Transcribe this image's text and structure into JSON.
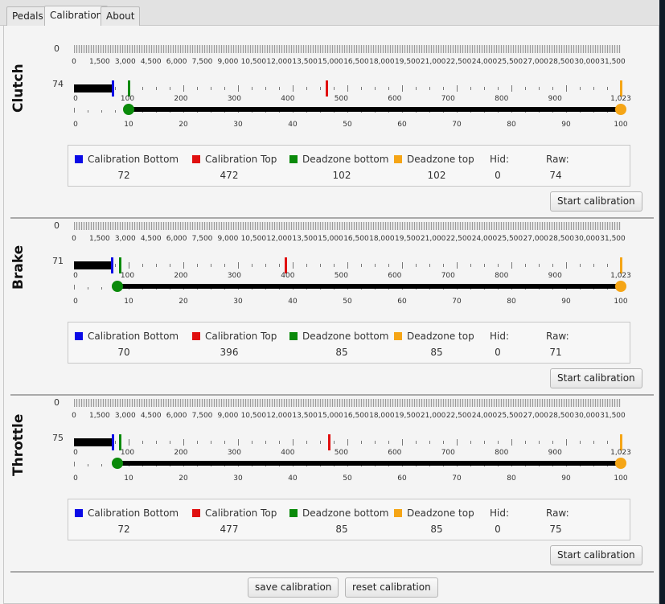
{
  "tabs": [
    {
      "label": "Pedals",
      "active": false
    },
    {
      "label": "Calibration",
      "active": true
    },
    {
      "label": "About",
      "active": false
    }
  ],
  "scales": {
    "top_ticks": [
      "0",
      "1,500",
      "3,000",
      "4,500",
      "6,000",
      "7,500",
      "9,000",
      "10,500",
      "12,000",
      "13,500",
      "15,000",
      "16,500",
      "18,000",
      "19,500",
      "21,000",
      "22,500",
      "24,000",
      "25,500",
      "27,000",
      "28,500",
      "30,000",
      "31,500"
    ],
    "mid_ticks": [
      "0",
      "100",
      "200",
      "300",
      "400",
      "500",
      "600",
      "700",
      "800",
      "900",
      "1,023"
    ],
    "bottom_ticks": [
      "0",
      "10",
      "20",
      "30",
      "40",
      "50",
      "60",
      "70",
      "80",
      "90",
      "100"
    ],
    "mid_max": 1023,
    "bottom_max": 100
  },
  "legend_labels": {
    "cal_bottom": "Calibration Bottom",
    "cal_top": "Calibration Top",
    "dz_bottom": "Deadzone bottom",
    "dz_top": "Deadzone top",
    "hid": "Hid:",
    "raw": "Raw:"
  },
  "colors": {
    "cal_bottom": "#0a0ae6",
    "cal_top": "#e01010",
    "dz_bottom": "#0a8a0a",
    "dz_top": "#f5a516"
  },
  "pedals": [
    {
      "name": "Clutch",
      "top_value": "0",
      "raw_label": "74",
      "cal_bottom": "72",
      "cal_top": "472",
      "dz_bottom": "102",
      "dz_top": "102",
      "hid": "0",
      "raw": "74",
      "deadzone_low_pct": 10,
      "deadzone_high_pct": 100,
      "button": "Start calibration"
    },
    {
      "name": "Brake",
      "top_value": "0",
      "raw_label": "71",
      "cal_bottom": "70",
      "cal_top": "396",
      "dz_bottom": "85",
      "dz_top": "85",
      "hid": "0",
      "raw": "71",
      "deadzone_low_pct": 8,
      "deadzone_high_pct": 100,
      "button": "Start calibration"
    },
    {
      "name": "Throttle",
      "top_value": "0",
      "raw_label": "75",
      "cal_bottom": "72",
      "cal_top": "477",
      "dz_bottom": "85",
      "dz_top": "85",
      "hid": "0",
      "raw": "75",
      "deadzone_low_pct": 8,
      "deadzone_high_pct": 100,
      "button": "Start calibration"
    }
  ],
  "footer": {
    "save_label": "save calibration",
    "reset_label": "reset calibration"
  }
}
